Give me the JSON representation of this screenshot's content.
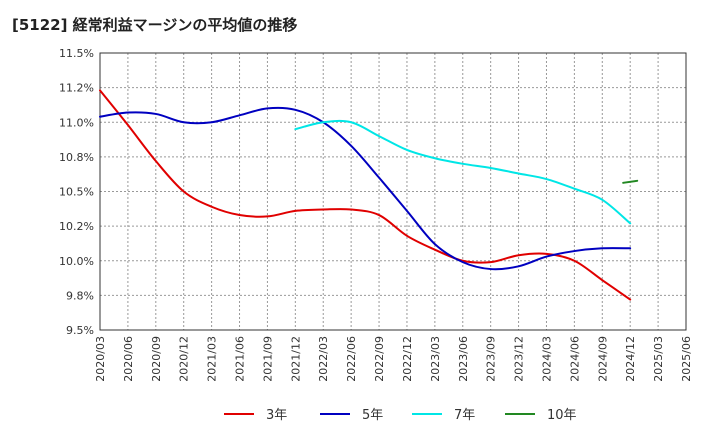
{
  "title": "[5122]  経常利益マージンの平均値の推移",
  "chart_data": {
    "type": "line",
    "title": "[5122]  経常利益マージンの平均値の推移",
    "xlabel": "",
    "ylabel": "",
    "ylim": [
      9.5,
      11.5
    ],
    "grid": true,
    "legend_position": "bottom",
    "y_ticks": [
      "11.5%",
      "11.2%",
      "11.0%",
      "10.8%",
      "10.5%",
      "10.2%",
      "10.0%",
      "9.8%",
      "9.5%"
    ],
    "y_tick_values": [
      11.5,
      11.25,
      11.0,
      10.75,
      10.5,
      10.25,
      10.0,
      9.75,
      9.5
    ],
    "x": [
      "2020/03",
      "2020/06",
      "2020/09",
      "2020/12",
      "2021/03",
      "2021/06",
      "2021/09",
      "2021/12",
      "2022/03",
      "2022/06",
      "2022/09",
      "2022/12",
      "2023/03",
      "2023/06",
      "2023/09",
      "2023/12",
      "2024/03",
      "2024/06",
      "2024/09",
      "2024/12",
      "2025/03",
      "2025/06"
    ],
    "series": [
      {
        "name": "3年",
        "color": "#e00000",
        "values": [
          11.23,
          10.98,
          10.72,
          10.5,
          10.39,
          10.33,
          10.32,
          10.36,
          10.37,
          10.37,
          10.33,
          10.18,
          10.08,
          10.0,
          9.99,
          10.04,
          10.05,
          10.0,
          9.86,
          9.72,
          null,
          null
        ]
      },
      {
        "name": "5年",
        "color": "#0000c0",
        "values": [
          11.04,
          11.07,
          11.06,
          11.0,
          11.0,
          11.05,
          11.1,
          11.09,
          11.0,
          10.83,
          10.6,
          10.36,
          10.12,
          9.99,
          9.94,
          9.96,
          10.03,
          10.07,
          10.09,
          10.09,
          null,
          null
        ]
      },
      {
        "name": "7年",
        "color": "#00e6e6",
        "values": [
          null,
          null,
          null,
          null,
          null,
          null,
          null,
          10.95,
          11.0,
          11.0,
          10.9,
          10.8,
          10.74,
          10.7,
          10.67,
          10.63,
          10.59,
          10.52,
          10.44,
          10.27,
          null,
          null
        ]
      },
      {
        "name": "10年",
        "color": "#228822",
        "values": [
          null,
          null,
          null,
          null,
          null,
          null,
          null,
          null,
          null,
          null,
          null,
          null,
          null,
          null,
          null,
          null,
          null,
          null,
          null,
          10.57,
          null,
          null
        ]
      }
    ]
  },
  "legend": [
    {
      "name": "3年",
      "color": "#e00000"
    },
    {
      "name": "5年",
      "color": "#0000c0"
    },
    {
      "name": "7年",
      "color": "#00e6e6"
    },
    {
      "name": "10年",
      "color": "#228822"
    }
  ]
}
